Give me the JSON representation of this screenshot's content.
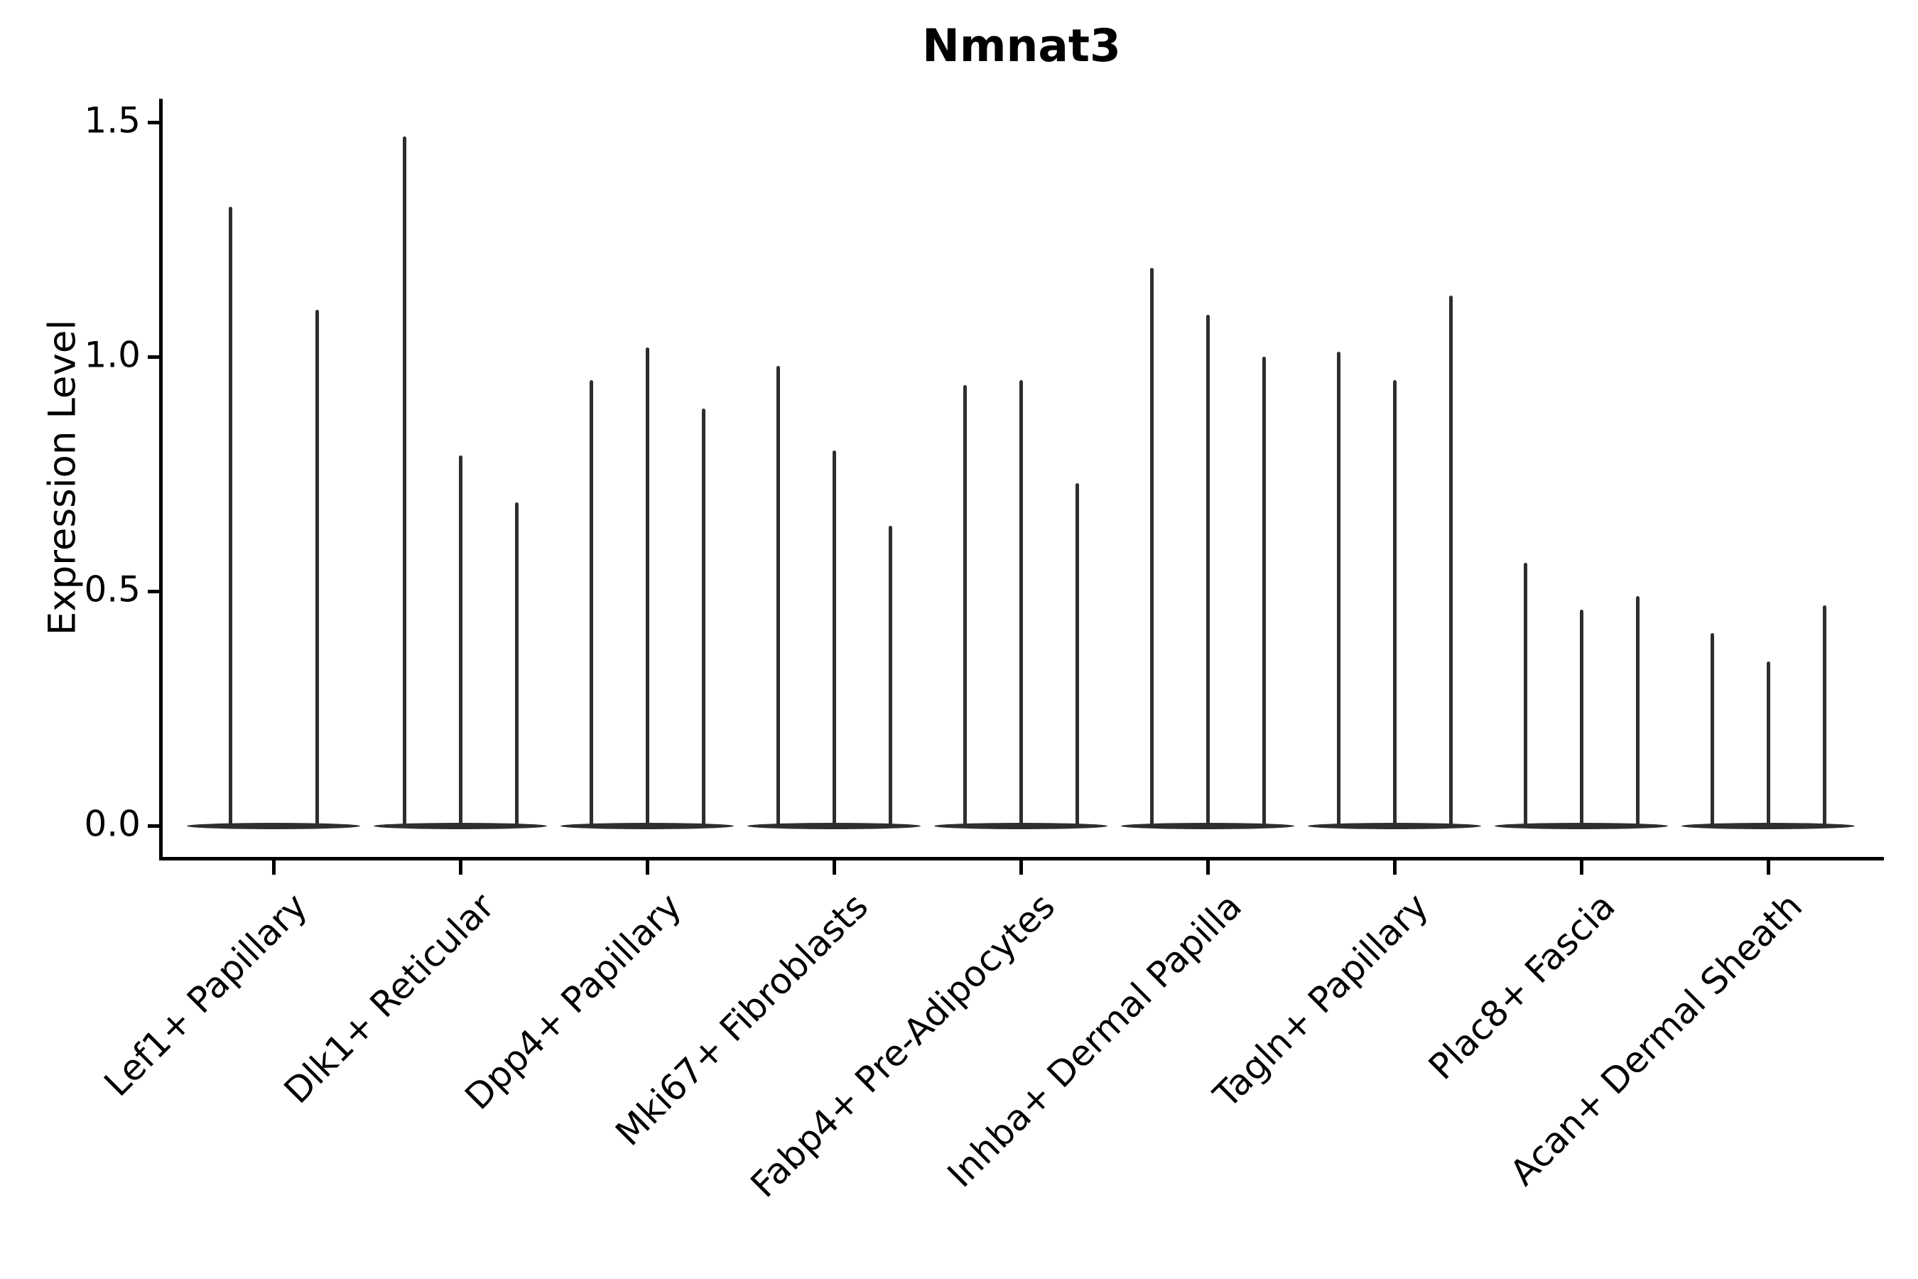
{
  "title": "Nmnat3",
  "y_axis": {
    "label": "Expression Level",
    "tick_labels": [
      "0.0",
      "0.5",
      "1.0",
      "1.5"
    ]
  },
  "chart_data": {
    "type": "violin",
    "title": "Nmnat3",
    "xlabel": "",
    "ylabel": "Expression Level",
    "ylim": [
      -0.07,
      1.55
    ],
    "yticks": [
      0.0,
      0.5,
      1.0,
      1.5
    ],
    "grid": false,
    "legend": "none",
    "style_note": "needle-thin black violins: density flattened in a lens at 0, thin spike rising to each violin's maximum expression value",
    "categories": [
      "Lef1+ Papillary",
      "Dlk1+ Reticular",
      "Dpp4+ Papillary",
      "Mki67+ Fibroblasts",
      "Fabp4+ Pre-Adipocytes",
      "Inhba+ Dermal Papilla",
      "Tagln+ Papillary",
      "Plac8+ Fascia",
      "Acan+ Dermal Sheath"
    ],
    "groups": [
      {
        "category": "Lef1+ Papillary",
        "spike_maxima": [
          1.32,
          1.1
        ]
      },
      {
        "category": "Dlk1+ Reticular",
        "spike_maxima": [
          1.47,
          0.79,
          0.69
        ]
      },
      {
        "category": "Dpp4+ Papillary",
        "spike_maxima": [
          0.95,
          1.02,
          0.89
        ]
      },
      {
        "category": "Mki67+ Fibroblasts",
        "spike_maxima": [
          0.98,
          0.8,
          0.64
        ]
      },
      {
        "category": "Fabp4+ Pre-Adipocytes",
        "spike_maxima": [
          0.94,
          0.95,
          0.73
        ]
      },
      {
        "category": "Inhba+ Dermal Papilla",
        "spike_maxima": [
          1.19,
          1.09,
          1.0
        ]
      },
      {
        "category": "Tagln+ Papillary",
        "spike_maxima": [
          1.01,
          0.95,
          1.13
        ]
      },
      {
        "category": "Plac8+ Fascia",
        "spike_maxima": [
          0.56,
          0.46,
          0.49
        ]
      },
      {
        "category": "Acan+ Dermal Sheath",
        "spike_maxima": [
          0.41,
          0.35,
          0.47
        ]
      }
    ]
  },
  "colors": {
    "violin": "#2e2e2e",
    "axis": "#000000",
    "text": "#000000",
    "background": "#ffffff"
  }
}
